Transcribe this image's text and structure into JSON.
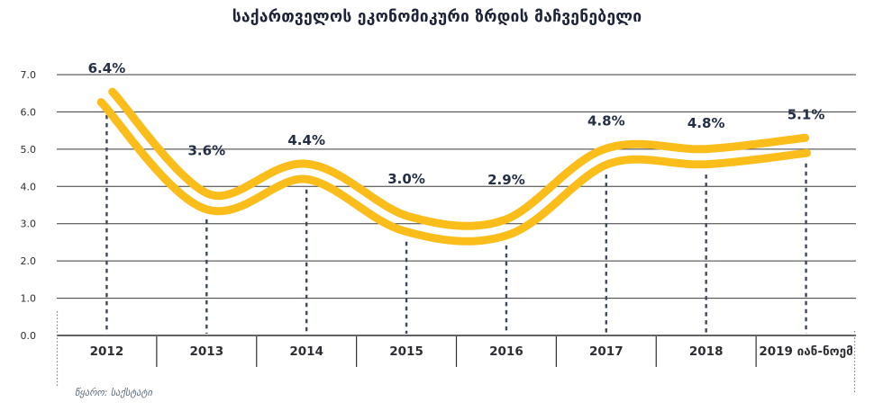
{
  "chart_data": {
    "type": "line",
    "title": "საქართველოს ეკონომიკური ზრდის მაჩვენებელი",
    "categories": [
      "2012",
      "2013",
      "2014",
      "2015",
      "2016",
      "2017",
      "2018",
      "2019 იან-ნოემ"
    ],
    "values": [
      6.4,
      3.6,
      4.4,
      3.0,
      2.9,
      4.8,
      4.8,
      5.1
    ],
    "value_labels": [
      "6.4%",
      "3.6%",
      "4.4%",
      "3.0%",
      "2.9%",
      "4.8%",
      "4.8%",
      "5.1%"
    ],
    "xlabel": "",
    "ylabel": "",
    "ylim": [
      0,
      7
    ],
    "yticks": [
      0,
      1,
      2,
      3,
      4,
      5,
      6,
      7
    ],
    "ytick_labels": [
      "0.0",
      "1.0",
      "2.0",
      "3.0",
      "4.0",
      "5.0",
      "6.0",
      "7.0"
    ],
    "grid": "horizontal",
    "legend": false,
    "line_style": "double-parallel-line",
    "source": "წყარო: საქსტატი"
  },
  "colors": {
    "line_yellow": "#FBBD1A",
    "value_label": "#232F45",
    "title_text": "#1E2438",
    "axis_text": "#2D2D33",
    "grid_line": "#3A3A3A",
    "axis_line": "#2F2F33",
    "dropline": "#3D4A5C",
    "source_text": "#5C6B7D",
    "dotted_mark": "#7A8089",
    "background": "#FFFFFF"
  }
}
